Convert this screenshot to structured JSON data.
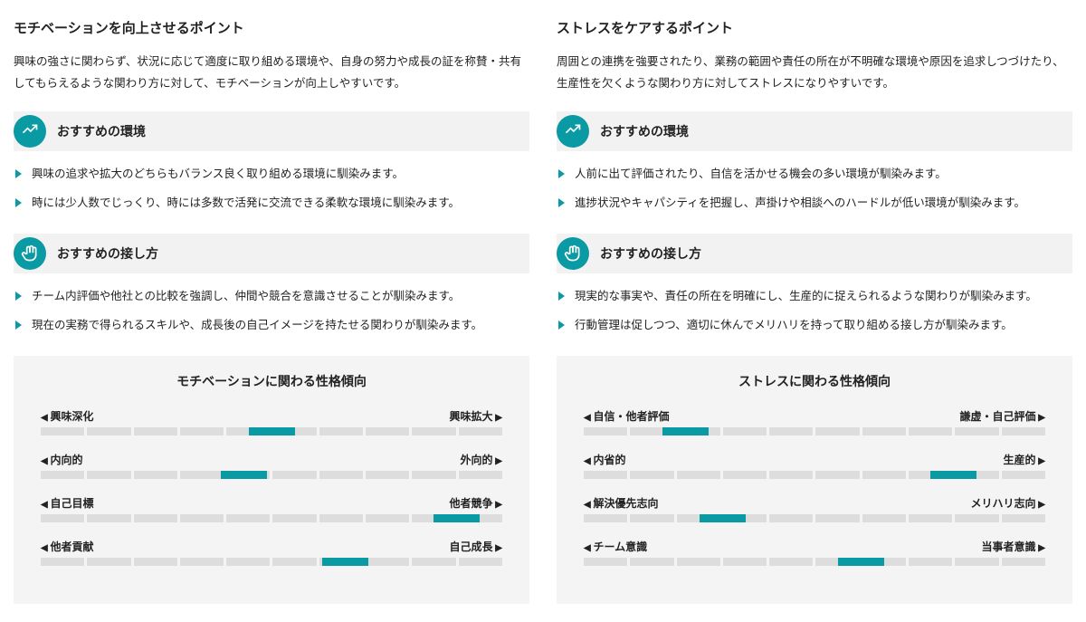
{
  "colors": {
    "accent": "#0a9aa3",
    "seg_bg": "#dddddd",
    "panel_bg": "#f4f4f4",
    "header_bg": "#f2f2f2",
    "text": "#222222"
  },
  "scale": {
    "segments": 10,
    "marker_width_pct": 10
  },
  "left": {
    "title": "モチベーションを向上させるポイント",
    "intro": "興味の強さに関わらず、状況に応じて適度に取り組める環境や、自身の努力や成長の証を称賛・共有してもらえるような関わり方に対して、モチベーションが向上しやすいです。",
    "sections": [
      {
        "icon": "trend",
        "title": "おすすめの環境",
        "items": [
          "興味の追求や拡大のどちらもバランス良く取り組める環境に馴染みます。",
          "時には少人数でじっくり、時には多数で活発に交流できる柔軟な環境に馴染みます。"
        ]
      },
      {
        "icon": "hand",
        "title": "おすすめの接し方",
        "items": [
          "チーム内評価や他社との比較を強調し、仲間や競合を意識させることが馴染みます。",
          "現在の実務で得られるスキルや、成長後の自己イメージを持たせる関わりが馴染みます。"
        ]
      }
    ],
    "chart": {
      "title": "モチベーションに関わる性格傾向",
      "rows": [
        {
          "left": "興味深化",
          "right": "興味拡大",
          "pos": 50
        },
        {
          "left": "内向的",
          "right": "外向的",
          "pos": 44
        },
        {
          "left": "自己目標",
          "right": "他者競争",
          "pos": 90
        },
        {
          "left": "他者貢献",
          "right": "自己成長",
          "pos": 66
        }
      ]
    }
  },
  "right": {
    "title": "ストレスをケアするポイント",
    "intro": "周囲との連携を強要されたり、業務の範囲や責任の所在が不明確な環境や原因を追求しつづけたり、生産性を欠くような関わり方に対してストレスになりやすいです。",
    "sections": [
      {
        "icon": "trend",
        "title": "おすすめの環境",
        "items": [
          "人前に出て評価されたり、自信を活かせる機会の多い環境が馴染みます。",
          "進捗状況やキャパシティを把握し、声掛けや相談へのハードルが低い環境が馴染みます。"
        ]
      },
      {
        "icon": "hand",
        "title": "おすすめの接し方",
        "items": [
          "現実的な事実や、責任の所在を明確にし、生産的に捉えられるような関わりが馴染みます。",
          "行動管理は促しつつ、適切に休んでメリハリを持って取り組める接し方が馴染みます。"
        ]
      }
    ],
    "chart": {
      "title": "ストレスに関わる性格傾向",
      "rows": [
        {
          "left": "自信・他者評価",
          "right": "謙虚・自己評価",
          "pos": 22
        },
        {
          "left": "内省的",
          "right": "生産的",
          "pos": 80
        },
        {
          "left": "解決優先志向",
          "right": "メリハリ志向",
          "pos": 30
        },
        {
          "left": "チーム意識",
          "right": "当事者意識",
          "pos": 60
        }
      ]
    }
  }
}
